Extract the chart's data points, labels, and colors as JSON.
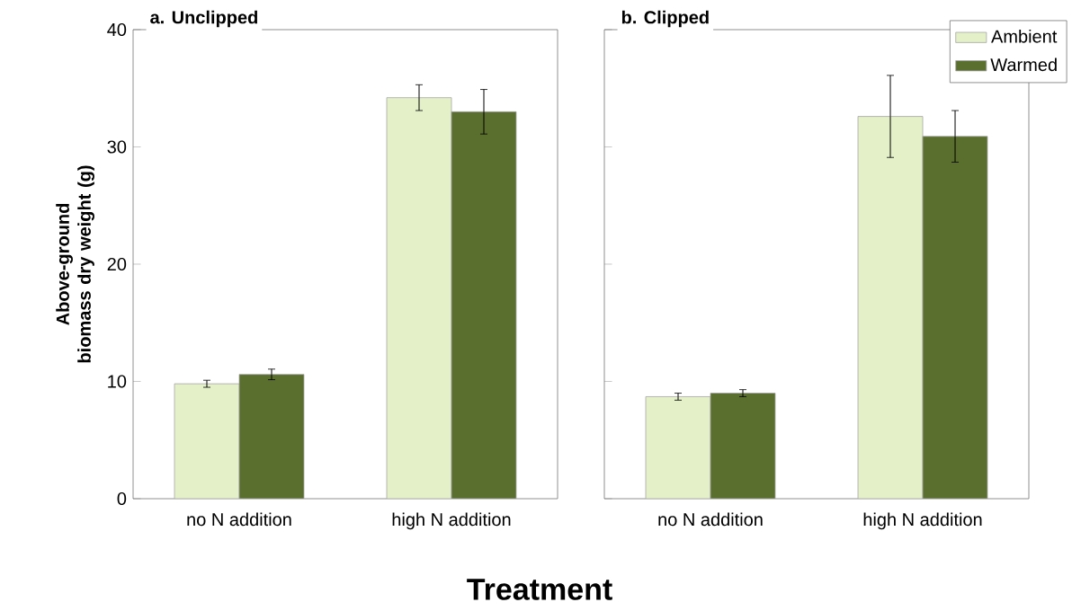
{
  "chart_data": [
    {
      "type": "bar",
      "title": "a. Unclipped",
      "ylabel": "Above-ground biomass dry weight (g)",
      "xlabel": "Treatment",
      "categories": [
        "no N addition",
        "high N addition"
      ],
      "ylim": [
        0,
        40
      ],
      "yticks": [
        0,
        10,
        20,
        30,
        40
      ],
      "series": [
        {
          "color": "#e3f0c8",
          "values": [
            9.8,
            34.2
          ],
          "errors": [
            0.3,
            1.1
          ]
        },
        {
          "color": "#5a6e2e",
          "values": [
            10.6,
            33.0
          ],
          "errors": [
            0.45,
            1.9
          ]
        }
      ]
    },
    {
      "type": "bar",
      "title": "b. Clipped",
      "categories": [
        "no N addition",
        "high N addition"
      ],
      "ylim": [
        0,
        40
      ],
      "yticks": [
        0,
        10,
        20,
        30,
        40
      ],
      "tick_labels": "x",
      "legend": "top right",
      "series": [
        {
          "name": "Ambient",
          "color": "#e3f0c8",
          "values": [
            8.7,
            32.6
          ],
          "errors": [
            0.3,
            3.5
          ]
        },
        {
          "name": "Warmed",
          "color": "#5a6e2e",
          "values": [
            9.0,
            30.9
          ],
          "errors": [
            0.3,
            2.2
          ]
        }
      ]
    }
  ]
}
